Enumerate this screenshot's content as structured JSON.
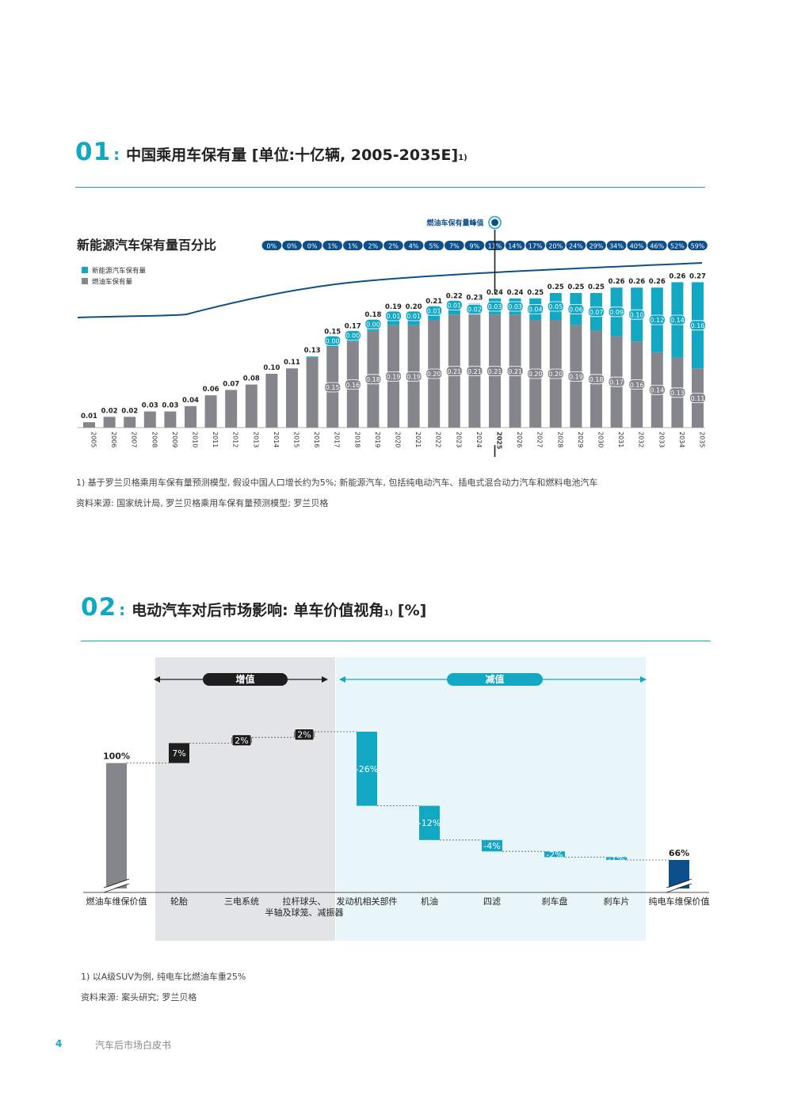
{
  "section1": {
    "num": "01",
    "colon": ":",
    "title": "中国乘用车保有量 [单位:十亿辆, 2005-2035E]",
    "sup": "1)",
    "subtitle": "新能源汽车保有量百分比",
    "peak_label": "燃油车保有量峰值",
    "note1": "1) 基于罗兰贝格乘用车保有量预测模型, 假设中国人口增长约为5%; 新能源汽车, 包括纯电动汽车、插电式混合动力汽车和燃料电池汽车",
    "note2": "资料来源: 国家统计局, 罗兰贝格乘用车保有量预测模型; 罗兰贝格"
  },
  "section2": {
    "num": "02",
    "colon": ":",
    "title": "电动汽车对后市场影响: 单车价值视角",
    "sup": "1)",
    "title_tail": "[%]",
    "increase_label": "增值",
    "decrease_label": "减值",
    "note1": "1) 以A级SUV为例, 纯电车比燃油车重25%",
    "note2": "资料来源: 案头研究; 罗兰贝格"
  },
  "footer": {
    "page": "4",
    "text": "汽车后市场白皮书"
  },
  "colors": {
    "teal": "#12a7c3",
    "grey": "#85868c",
    "navy": "#0d4f8b",
    "dark": "#1e1e1e"
  },
  "chart_data": [
    {
      "type": "bar",
      "stacked": true,
      "title": "中国乘用车保有量 [单位:十亿辆, 2005-2035E]",
      "categories": [
        "2005",
        "2006",
        "2007",
        "2008",
        "2009",
        "2010",
        "2011",
        "2012",
        "2013",
        "2014",
        "2015",
        "2016",
        "2017",
        "2018",
        "2019",
        "2020",
        "2021",
        "2022",
        "2023",
        "2024",
        "2025",
        "2026",
        "2027",
        "2028",
        "2029",
        "2030",
        "2031",
        "2032",
        "2033",
        "2034",
        "2035"
      ],
      "highlight_category": "2025",
      "totals": [
        "0.01",
        "0.02",
        "0.02",
        "0.03",
        "0.03",
        "0.04",
        "0.06",
        "0.07",
        "0.08",
        "0.10",
        "0.11",
        "0.13",
        "0.15",
        "0.17",
        "0.18",
        "0.19",
        "0.20",
        "0.21",
        "0.22",
        "0.23",
        "0.24",
        "0.24",
        "0.25",
        "0.25",
        "0.25",
        "0.25",
        "0.26",
        "0.26",
        "0.26",
        "0.26",
        "0.27"
      ],
      "series": [
        {
          "name": "燃油车保有量",
          "color": "#85868c",
          "values": [
            0.01,
            0.02,
            0.02,
            0.03,
            0.03,
            0.04,
            0.06,
            0.07,
            0.08,
            0.1,
            0.11,
            0.13,
            0.15,
            0.16,
            0.18,
            0.19,
            0.19,
            0.2,
            0.21,
            0.21,
            0.21,
            0.21,
            0.2,
            0.2,
            0.19,
            0.18,
            0.17,
            0.16,
            0.14,
            0.13,
            0.11
          ],
          "labels": [
            "",
            "",
            "",
            "",
            "",
            "",
            "",
            "",
            "",
            "",
            "",
            "",
            "0.15",
            "0.16",
            "0.18",
            "0.19",
            "0.19",
            "0.20",
            "0.21",
            "0.21",
            "0.21",
            "0.21",
            "0.20",
            "0.20",
            "0.19",
            "0.18",
            "0.17",
            "0.16",
            "0.14",
            "0.13",
            "0.11"
          ]
        },
        {
          "name": "新能源汽车保有量",
          "color": "#12a7c3",
          "values": [
            0,
            0,
            0,
            0,
            0,
            0,
            0,
            0,
            0,
            0,
            0,
            0.002,
            0.004,
            0.004,
            0.005,
            0.01,
            0.01,
            0.01,
            0.01,
            0.02,
            0.03,
            0.03,
            0.04,
            0.05,
            0.06,
            0.07,
            0.09,
            0.1,
            0.12,
            0.14,
            0.16
          ],
          "labels": [
            "",
            "",
            "",
            "",
            "",
            "",
            "",
            "",
            "",
            "",
            "",
            "",
            "0.00",
            "0.00",
            "0.00",
            "0.01",
            "0.01",
            "0.01",
            "0.01",
            "0.02",
            "0.03",
            "0.03",
            "0.04",
            "0.05",
            "0.06",
            "0.07",
            "0.09",
            "0.10",
            "0.12",
            "0.14",
            "0.16"
          ]
        }
      ],
      "nev_share_label": "新能源汽车保有量百分比",
      "nev_share": [
        "0%",
        "0%",
        "0%",
        "1%",
        "1%",
        "2%",
        "2%",
        "4%",
        "5%",
        "7%",
        "9%",
        "11%",
        "14%",
        "17%",
        "20%",
        "24%",
        "29%",
        "34%",
        "40%",
        "46%",
        "52%",
        "59%"
      ],
      "nev_share_values": [
        0,
        0,
        0,
        1,
        1,
        2,
        2,
        4,
        5,
        7,
        9,
        11,
        14,
        17,
        20,
        24,
        29,
        34,
        40,
        46,
        52,
        59
      ],
      "ylim": [
        0,
        0.3
      ]
    },
    {
      "type": "bar",
      "subtype": "waterfall",
      "title": "电动汽车对后市场影响: 单车价值视角 [%]",
      "categories": [
        "燃油车维保价值",
        "轮胎",
        "三电系统",
        "拉杆球头、半轴及球笼、减振器",
        "发动机相关部件",
        "机油",
        "四滤",
        "刹车盘",
        "刹车片",
        "纯电车维保价值"
      ],
      "values": [
        100,
        7,
        2,
        2,
        -26,
        -12,
        -4,
        -2,
        -1,
        66
      ],
      "labels": [
        "100%",
        "7%",
        "2%",
        "2%",
        "-26%",
        "-12%",
        "-4%",
        "-2%",
        "-1%",
        "66%"
      ],
      "kinds": [
        "total",
        "up",
        "up",
        "up",
        "down",
        "down",
        "down",
        "down",
        "down",
        "total"
      ],
      "groups": {
        "增值": [
          "轮胎",
          "三电系统",
          "拉杆球头、半轴及球笼、减振器"
        ],
        "减值": [
          "发动机相关部件",
          "机油",
          "四滤",
          "刹车盘",
          "刹车片"
        ]
      },
      "axis_break": true
    }
  ]
}
